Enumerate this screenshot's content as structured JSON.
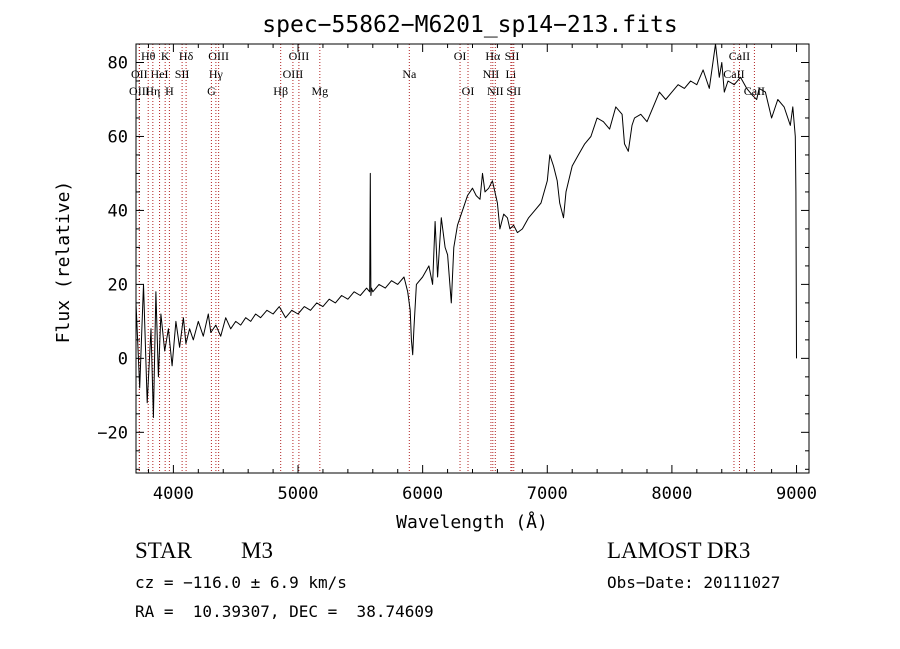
{
  "chart_data": {
    "type": "line",
    "title": "spec−55862−M6201_sp14−213.fits",
    "xlabel": "Wavelength (Å)",
    "ylabel": "Flux (relative)",
    "xlim": [
      3700,
      9100
    ],
    "ylim": [
      -31,
      85
    ],
    "xticks": [
      4000,
      5000,
      6000,
      7000,
      8000,
      9000
    ],
    "xtick_labels": [
      "4000",
      "5000",
      "6000",
      "7000",
      "8000",
      "9000"
    ],
    "yticks": [
      -20,
      0,
      20,
      40,
      60,
      80
    ],
    "ytick_labels": [
      "−20",
      "0",
      "20",
      "40",
      "60",
      "80"
    ],
    "series": [
      {
        "name": "spectrum",
        "x": [
          3700,
          3730,
          3760,
          3790,
          3820,
          3840,
          3860,
          3880,
          3900,
          3930,
          3960,
          3990,
          4020,
          4050,
          4080,
          4100,
          4130,
          4160,
          4200,
          4240,
          4280,
          4300,
          4340,
          4380,
          4420,
          4460,
          4500,
          4540,
          4580,
          4620,
          4660,
          4700,
          4750,
          4800,
          4850,
          4900,
          4950,
          5000,
          5050,
          5100,
          5150,
          5200,
          5250,
          5300,
          5350,
          5400,
          5450,
          5500,
          5550,
          5575,
          5580,
          5585,
          5590,
          5600,
          5650,
          5700,
          5750,
          5800,
          5850,
          5880,
          5900,
          5910,
          5920,
          5930,
          5950,
          6000,
          6050,
          6080,
          6100,
          6120,
          6150,
          6180,
          6200,
          6230,
          6250,
          6280,
          6300,
          6330,
          6360,
          6400,
          6430,
          6460,
          6480,
          6500,
          6530,
          6560,
          6580,
          6600,
          6620,
          6650,
          6680,
          6700,
          6730,
          6760,
          6800,
          6850,
          6900,
          6950,
          7000,
          7020,
          7050,
          7080,
          7100,
          7130,
          7150,
          7200,
          7250,
          7300,
          7350,
          7400,
          7450,
          7500,
          7550,
          7600,
          7620,
          7650,
          7680,
          7700,
          7750,
          7800,
          7850,
          7900,
          7950,
          8000,
          8050,
          8100,
          8150,
          8200,
          8250,
          8300,
          8350,
          8380,
          8400,
          8420,
          8450,
          8500,
          8550,
          8600,
          8650,
          8680,
          8700,
          8750,
          8800,
          8850,
          8900,
          8950,
          8970,
          8990,
          8995,
          9000
        ],
        "y": [
          15,
          -8,
          20,
          -12,
          8,
          -16,
          18,
          -5,
          12,
          2,
          8,
          -2,
          10,
          3,
          11,
          4,
          8,
          5,
          10,
          6,
          12,
          7,
          9,
          6,
          11,
          8,
          10,
          9,
          11,
          10,
          12,
          11,
          13,
          12,
          14,
          11,
          13,
          12,
          14,
          13,
          15,
          14,
          16,
          15,
          17,
          16,
          18,
          17,
          19,
          18,
          50,
          17,
          19,
          18,
          20,
          19,
          21,
          20,
          22,
          18,
          13,
          5,
          1,
          8,
          20,
          22,
          25,
          20,
          37,
          22,
          38,
          30,
          28,
          15,
          30,
          36,
          38,
          41,
          44,
          46,
          44,
          43,
          50,
          45,
          46,
          48,
          45,
          42,
          35,
          39,
          38,
          35,
          36,
          34,
          35,
          38,
          40,
          42,
          48,
          55,
          52,
          48,
          42,
          38,
          45,
          52,
          55,
          58,
          60,
          65,
          64,
          62,
          68,
          66,
          58,
          56,
          63,
          65,
          66,
          64,
          68,
          72,
          70,
          72,
          74,
          73,
          75,
          74,
          78,
          73,
          85,
          76,
          80,
          72,
          75,
          74,
          76,
          73,
          71,
          70,
          73,
          72,
          65,
          70,
          68,
          63,
          68,
          60,
          45,
          0
        ]
      }
    ],
    "line_markers": [
      {
        "label": "Hθ",
        "x": 3798,
        "row": 0
      },
      {
        "label": "K",
        "x": 3934,
        "row": 0
      },
      {
        "label": "Hδ",
        "x": 4102,
        "row": 0
      },
      {
        "label": "OIII",
        "x": 4363,
        "row": 0
      },
      {
        "label": "OIII",
        "x": 5007,
        "row": 0
      },
      {
        "label": "OI",
        "x": 6300,
        "row": 0
      },
      {
        "label": "Hα",
        "x": 6563,
        "row": 0
      },
      {
        "label": "SII",
        "x": 6717,
        "row": 0
      },
      {
        "label": "CaII",
        "x": 8542,
        "row": 0
      },
      {
        "label": "OII",
        "x": 3727,
        "row": 1
      },
      {
        "label": "HeI",
        "x": 3889,
        "row": 1
      },
      {
        "label": "SII",
        "x": 4070,
        "row": 1
      },
      {
        "label": "Hγ",
        "x": 4341,
        "row": 1
      },
      {
        "label": "OIII",
        "x": 4959,
        "row": 1
      },
      {
        "label": "Na",
        "x": 5893,
        "row": 1
      },
      {
        "label": "NII",
        "x": 6548,
        "row": 1
      },
      {
        "label": "Li",
        "x": 6708,
        "row": 1
      },
      {
        "label": "CaII",
        "x": 8498,
        "row": 1
      },
      {
        "label": "OIII",
        "x": 3727,
        "row": 2
      },
      {
        "label": "Hη",
        "x": 3835,
        "row": 2
      },
      {
        "label": "H",
        "x": 3968,
        "row": 2
      },
      {
        "label": "G",
        "x": 4305,
        "row": 2
      },
      {
        "label": "Hβ",
        "x": 4861,
        "row": 2
      },
      {
        "label": "Mg",
        "x": 5175,
        "row": 2
      },
      {
        "label": "OI",
        "x": 6364,
        "row": 2
      },
      {
        "label": "NII",
        "x": 6583,
        "row": 2
      },
      {
        "label": "SII",
        "x": 6731,
        "row": 2
      },
      {
        "label": "CaII",
        "x": 8662,
        "row": 2
      }
    ],
    "line_color": "#000000",
    "marker_color": "#b22222"
  },
  "info": {
    "class_label": "STAR",
    "subclass_label": "M3",
    "survey": "LAMOST DR3",
    "redshift_text": "cz = −116.0 ± 6.9 km/s",
    "obs_date_text": "Obs−Date: 20111027",
    "coords_text": "RA =  10.39307, DEC =  38.74609"
  }
}
